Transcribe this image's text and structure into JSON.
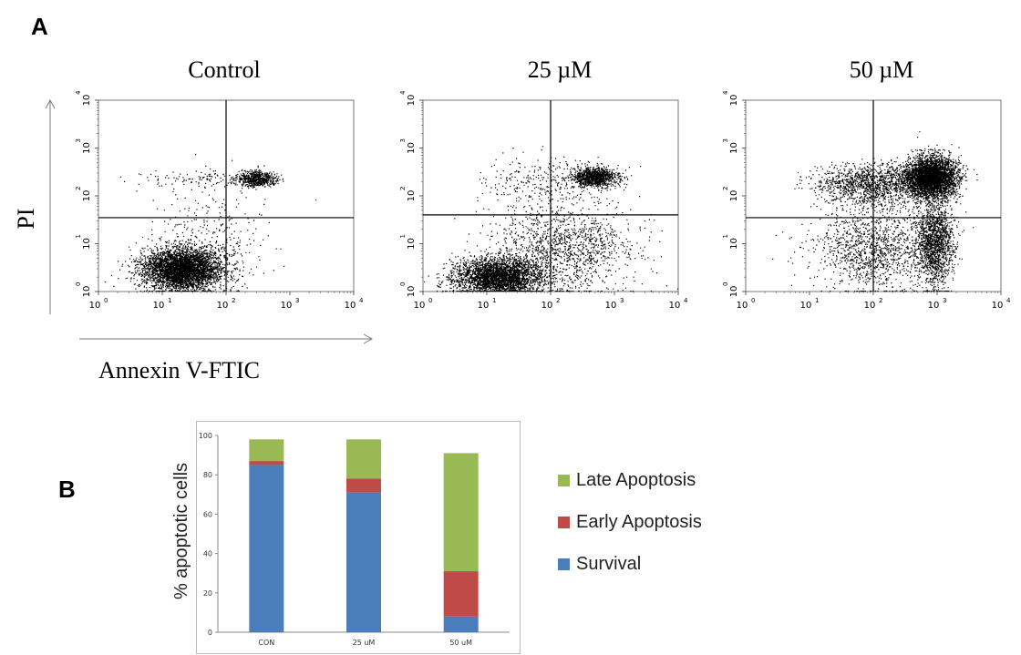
{
  "panel_a": {
    "letter": "A",
    "ylabel": "PI",
    "xlabel": "Annexin V-FTIC"
  },
  "panel_b": {
    "letter": "B"
  },
  "chart_data": [
    {
      "type": "scatter",
      "title": "Control",
      "xlabel": "Annexin V-FTIC",
      "ylabel": "PI",
      "xscale": "log",
      "yscale": "log",
      "xlim": [
        1,
        10000
      ],
      "ylim": [
        1,
        10000
      ],
      "xticks": [
        "10",
        "10",
        "10",
        "10",
        "10"
      ],
      "xtick_exp": [
        "0",
        "1",
        "2",
        "3",
        "4"
      ],
      "gates": {
        "x": 100,
        "y": 35
      },
      "clusters": [
        {
          "cx": 20,
          "cy": 3,
          "sx": 0.32,
          "sy": 0.22,
          "n": 4200
        },
        {
          "cx": 300,
          "cy": 230,
          "sx": 0.15,
          "sy": 0.08,
          "n": 650
        },
        {
          "cx": 40,
          "cy": 230,
          "sx": 0.45,
          "sy": 0.1,
          "n": 120
        },
        {
          "cx": 60,
          "cy": 15,
          "sx": 0.45,
          "sy": 0.45,
          "n": 250
        }
      ]
    },
    {
      "type": "scatter",
      "title": "25 µM",
      "xlabel": "Annexin V-FTIC",
      "ylabel": "PI",
      "xscale": "log",
      "yscale": "log",
      "xlim": [
        1,
        10000
      ],
      "ylim": [
        1,
        10000
      ],
      "xticks": [
        "10",
        "10",
        "10",
        "10",
        "10"
      ],
      "xtick_exp": [
        "0",
        "1",
        "2",
        "3",
        "4"
      ],
      "gates": {
        "x": 100,
        "y": 40
      },
      "clusters": [
        {
          "cx": 15,
          "cy": 2,
          "sx": 0.35,
          "sy": 0.2,
          "n": 3200
        },
        {
          "cx": 500,
          "cy": 250,
          "sx": 0.17,
          "sy": 0.1,
          "n": 1100
        },
        {
          "cx": 150,
          "cy": 8,
          "sx": 0.55,
          "sy": 0.45,
          "n": 1400
        },
        {
          "cx": 80,
          "cy": 200,
          "sx": 0.5,
          "sy": 0.25,
          "n": 300
        }
      ]
    },
    {
      "type": "scatter",
      "title": "50 µM",
      "xlabel": "Annexin V-FTIC",
      "ylabel": "PI",
      "xscale": "log",
      "yscale": "log",
      "xlim": [
        1,
        10000
      ],
      "ylim": [
        1,
        10000
      ],
      "xticks": [
        "10",
        "10",
        "10",
        "10",
        "10"
      ],
      "xtick_exp": [
        "0",
        "1",
        "2",
        "3",
        "4"
      ],
      "gates": {
        "x": 100,
        "y": 35
      },
      "clusters": [
        {
          "cx": 800,
          "cy": 250,
          "sx": 0.2,
          "sy": 0.22,
          "n": 3800
        },
        {
          "cx": 900,
          "cy": 10,
          "sx": 0.15,
          "sy": 0.45,
          "n": 1600
        },
        {
          "cx": 100,
          "cy": 180,
          "sx": 0.45,
          "sy": 0.22,
          "n": 1400
        },
        {
          "cx": 100,
          "cy": 8,
          "sx": 0.45,
          "sy": 0.45,
          "n": 1300
        }
      ]
    },
    {
      "type": "bar",
      "stacked": true,
      "categories": [
        "CON",
        "25 uM",
        "50 uM"
      ],
      "ylabel": "% apoptotic cells",
      "ylim": [
        0,
        100
      ],
      "yticks": [
        0,
        20,
        40,
        60,
        80,
        100
      ],
      "grid": false,
      "legend_position": "right",
      "series": [
        {
          "name": "Survival",
          "color": "#4a7ebb",
          "values": [
            85,
            71,
            8
          ]
        },
        {
          "name": "Early Apoptosis",
          "color": "#be4b48",
          "values": [
            2,
            7,
            23
          ]
        },
        {
          "name": "Late Apoptosis",
          "color": "#98b954",
          "values": [
            11,
            20,
            60
          ]
        }
      ],
      "legend": [
        "Late Apoptosis",
        "Early Apoptosis",
        "Survival"
      ]
    }
  ]
}
